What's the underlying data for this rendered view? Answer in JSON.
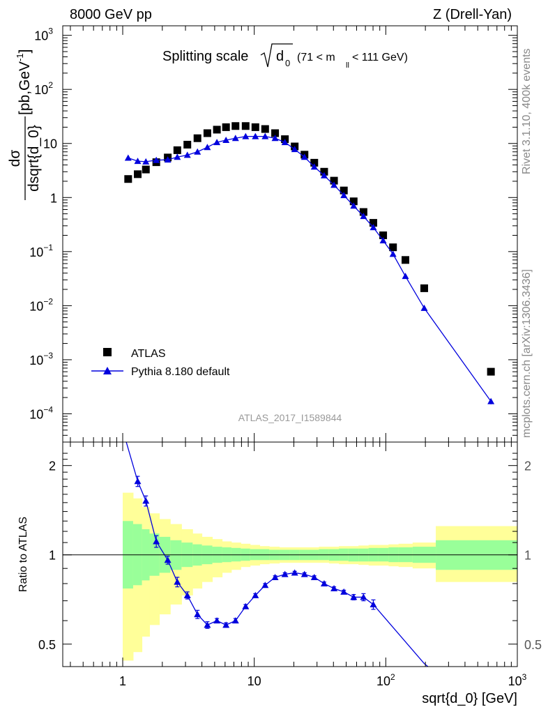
{
  "header": {
    "left_label": "8000 GeV pp",
    "right_label": "Z (Drell-Yan)"
  },
  "side_text": {
    "rivet": "Rivet 3.1.10,  400k events",
    "mcplots": "mcplots.cern.ch [arXiv:1306.3436]"
  },
  "colors": {
    "data": "#000000",
    "mc": "#0000dd",
    "band_inner": "#99ff99",
    "band_outer": "#ffff99"
  },
  "chart_data": [
    {
      "type": "scatter",
      "panel": "main",
      "title": {
        "prefix": "Splitting scale",
        "var_main": "d",
        "var_sub": "0",
        "cut_pre": "(71 < m",
        "cut_sub": "ll",
        "cut_post": " < 111 GeV)"
      },
      "ylabel": {
        "num": "dσ",
        "den": "dsqrt{d_0}",
        "unit": " [pb,GeV",
        "unit_sup": "-1",
        "unit_end": "]"
      },
      "xlabel": "",
      "x_scale": "log",
      "y_scale": "log",
      "xlim": [
        0.35,
        1000
      ],
      "ylim": [
        3e-05,
        1500
      ],
      "y_ticks": [
        {
          "value": 1000,
          "base": "10",
          "exp": "3"
        },
        {
          "value": 100,
          "base": "10",
          "exp": "2"
        },
        {
          "value": 10,
          "base": "10",
          "exp": ""
        },
        {
          "value": 1,
          "base": "1",
          "exp": ""
        },
        {
          "value": 0.1,
          "base": "10",
          "exp": "−1"
        },
        {
          "value": 0.01,
          "base": "10",
          "exp": "−2"
        },
        {
          "value": 0.001,
          "base": "10",
          "exp": "−3"
        },
        {
          "value": 0.0001,
          "base": "10",
          "exp": "−4"
        }
      ],
      "watermark": "ATLAS_2017_I1589844",
      "legend_position": "bottom-left",
      "series": [
        {
          "name": "ATLAS",
          "marker": "square",
          "x": [
            1.1,
            1.3,
            1.5,
            1.8,
            2.2,
            2.6,
            3.1,
            3.7,
            4.4,
            5.2,
            6.1,
            7.2,
            8.6,
            10.2,
            12.1,
            14.4,
            17.1,
            20.3,
            24.1,
            28.6,
            34.0,
            40.4,
            48.0,
            57.0,
            67.7,
            80.4,
            95.5,
            113.5,
            141.0,
            196.0,
            630.0
          ],
          "y": [
            2.2,
            2.7,
            3.3,
            4.5,
            5.5,
            7.5,
            9.5,
            12.5,
            15.5,
            18.0,
            20.0,
            21.0,
            21.0,
            20.0,
            18.5,
            15.5,
            12.0,
            8.8,
            6.2,
            4.4,
            3.0,
            2.05,
            1.35,
            0.85,
            0.54,
            0.34,
            0.2,
            0.12,
            0.07,
            0.021,
            0.0006
          ],
          "yerr": [
            0,
            0,
            0,
            0,
            0,
            0,
            0,
            0,
            0,
            0,
            0,
            0,
            0,
            0,
            0,
            0,
            0,
            0,
            0,
            0,
            0,
            0,
            0,
            0,
            0,
            0,
            0,
            0,
            0,
            0,
            0
          ]
        },
        {
          "name": "Pythia 8.180 default",
          "marker": "triangle",
          "x": [
            1.1,
            1.3,
            1.5,
            1.8,
            2.2,
            2.6,
            3.1,
            3.7,
            4.4,
            5.2,
            6.1,
            7.2,
            8.6,
            10.2,
            12.1,
            14.4,
            17.1,
            20.3,
            24.1,
            28.6,
            34.0,
            40.4,
            48.0,
            57.0,
            67.7,
            80.4,
            95.5,
            113.5,
            141.0,
            196.0,
            630.0
          ],
          "y": [
            5.4,
            4.7,
            4.6,
            4.9,
            5.0,
            5.6,
            6.1,
            7.0,
            8.5,
            10.5,
            11.5,
            12.5,
            13.5,
            13.5,
            13.5,
            12.5,
            10.5,
            7.8,
            5.6,
            3.7,
            2.55,
            1.7,
            1.1,
            0.7,
            0.45,
            0.28,
            0.16,
            0.09,
            0.035,
            0.009,
            0.00017
          ],
          "yerr": [
            0,
            0,
            0,
            0,
            0,
            0,
            0,
            0,
            0,
            0,
            0,
            0,
            0,
            0,
            0,
            0,
            0,
            0,
            0,
            0,
            0,
            0,
            0,
            0,
            0,
            0,
            0,
            0,
            0,
            0,
            2e-05
          ]
        }
      ]
    },
    {
      "type": "scatter",
      "panel": "ratio",
      "xlabel": "sqrt{d_0} [GeV]",
      "ylabel": "Ratio to ATLAS",
      "x_scale": "log",
      "y_scale": "log",
      "xlim": [
        0.35,
        1000
      ],
      "ylim": [
        0.42,
        2.4
      ],
      "x_ticks": [
        {
          "value": 1,
          "base": "1",
          "exp": ""
        },
        {
          "value": 10,
          "base": "10",
          "exp": ""
        },
        {
          "value": 100,
          "base": "10",
          "exp": "2"
        },
        {
          "value": 1000,
          "base": "10",
          "exp": "3"
        }
      ],
      "y_ticks": [
        {
          "value": 0.5,
          "label": "0.5"
        },
        {
          "value": 1,
          "label": "1"
        },
        {
          "value": 2,
          "label": "2"
        }
      ],
      "reference_line": 1,
      "uncertainty_band": {
        "edges": [
          1.0,
          1.2,
          1.4,
          1.6,
          1.9,
          2.3,
          2.8,
          3.4,
          4.0,
          4.8,
          5.7,
          6.7,
          7.9,
          9.3,
          11.0,
          13.0,
          15.5,
          18.5,
          22.0,
          26.0,
          31.0,
          37.0,
          44.0,
          52.0,
          62.0,
          74.0,
          88.0,
          105.0,
          125.0,
          160.0,
          240.0,
          1000.0
        ],
        "inner_lo": [
          0.77,
          0.79,
          0.82,
          0.85,
          0.87,
          0.89,
          0.91,
          0.92,
          0.93,
          0.94,
          0.945,
          0.95,
          0.955,
          0.96,
          0.96,
          0.96,
          0.96,
          0.96,
          0.96,
          0.96,
          0.96,
          0.955,
          0.955,
          0.95,
          0.95,
          0.95,
          0.95,
          0.945,
          0.945,
          0.94,
          0.89
        ],
        "inner_hi": [
          1.3,
          1.27,
          1.22,
          1.18,
          1.15,
          1.12,
          1.1,
          1.085,
          1.075,
          1.065,
          1.06,
          1.055,
          1.05,
          1.045,
          1.045,
          1.04,
          1.04,
          1.04,
          1.04,
          1.04,
          1.045,
          1.045,
          1.05,
          1.05,
          1.05,
          1.055,
          1.055,
          1.06,
          1.06,
          1.065,
          1.12
        ],
        "outer_lo": [
          0.44,
          0.47,
          0.53,
          0.58,
          0.63,
          0.68,
          0.73,
          0.77,
          0.81,
          0.84,
          0.87,
          0.89,
          0.91,
          0.92,
          0.93,
          0.935,
          0.94,
          0.94,
          0.94,
          0.94,
          0.94,
          0.935,
          0.93,
          0.93,
          0.925,
          0.92,
          0.92,
          0.915,
          0.91,
          0.9,
          0.81
        ],
        "outer_hi": [
          1.62,
          1.55,
          1.45,
          1.38,
          1.32,
          1.27,
          1.22,
          1.18,
          1.15,
          1.13,
          1.11,
          1.1,
          1.09,
          1.08,
          1.07,
          1.065,
          1.06,
          1.06,
          1.06,
          1.06,
          1.065,
          1.065,
          1.07,
          1.07,
          1.075,
          1.08,
          1.08,
          1.085,
          1.09,
          1.1,
          1.25
        ]
      },
      "series": [
        {
          "name": "Pythia 8.180 default",
          "marker": "triangle",
          "x": [
            1.3,
            1.5,
            1.8,
            2.2,
            2.6,
            3.1,
            3.7,
            4.4,
            5.2,
            6.1,
            7.2,
            8.6,
            10.2,
            12.1,
            14.4,
            17.1,
            20.3,
            24.1,
            28.6,
            34.0,
            40.4,
            48.0,
            57.0,
            67.7,
            80.4
          ],
          "y": [
            1.77,
            1.52,
            1.11,
            0.96,
            0.81,
            0.73,
            0.63,
            0.58,
            0.6,
            0.58,
            0.6,
            0.67,
            0.73,
            0.79,
            0.84,
            0.86,
            0.87,
            0.86,
            0.84,
            0.8,
            0.77,
            0.75,
            0.72,
            0.72,
            0.68
          ],
          "yerr": [
            0.07,
            0.06,
            0.05,
            0.03,
            0.03,
            0.02,
            0.02,
            0.015,
            0.01,
            0.01,
            0.01,
            0.01,
            0.01,
            0.01,
            0.01,
            0.01,
            0.01,
            0.01,
            0.01,
            0.01,
            0.01,
            0.01,
            0.015,
            0.02,
            0.025
          ],
          "line_x": [
            1.05,
            1.3,
            1.5,
            1.8,
            2.2,
            2.6,
            3.1,
            3.7,
            4.4,
            5.2,
            6.1,
            7.2,
            8.6,
            10.2,
            12.1,
            14.4,
            17.1,
            20.3,
            24.1,
            28.6,
            34.0,
            40.4,
            48.0,
            57.0,
            67.7,
            80.4,
            196.0,
            630.0
          ],
          "line_y": [
            2.45,
            1.77,
            1.52,
            1.11,
            0.96,
            0.81,
            0.73,
            0.63,
            0.58,
            0.6,
            0.58,
            0.6,
            0.67,
            0.73,
            0.79,
            0.84,
            0.86,
            0.87,
            0.86,
            0.84,
            0.8,
            0.77,
            0.75,
            0.72,
            0.72,
            0.68,
            0.43,
            0.28
          ]
        }
      ]
    }
  ]
}
